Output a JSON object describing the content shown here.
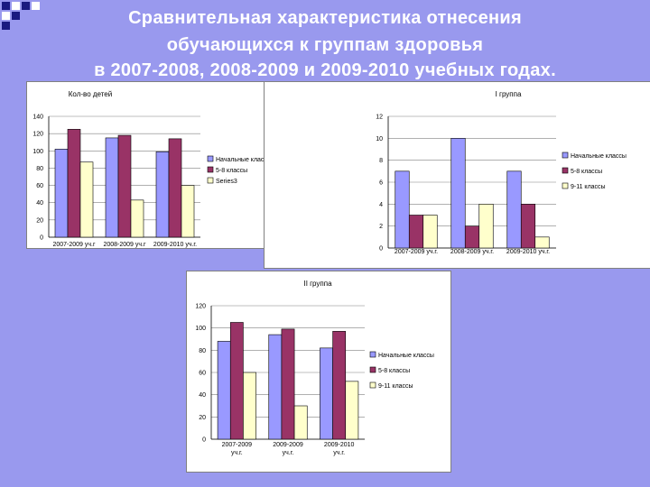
{
  "slide": {
    "title_lines": [
      "Сравнительная характеристика  отнесения",
      "обучающихся к группам здоровья",
      "в 2007-2008, 2008-2009 и 2009-2010 учебных годах."
    ]
  },
  "colors": {
    "background": "#9999ee",
    "s1": "#9999ff",
    "s2": "#993366",
    "s3": "#ffffcc"
  },
  "chart_data": [
    {
      "type": "bar",
      "title": "Кол-во детей",
      "categories": [
        "2007-2009 уч.г",
        "2008-2009 уч.г",
        "2009-2010 уч.г."
      ],
      "series": [
        {
          "name": "Начальные классы",
          "values": [
            102,
            115,
            99
          ]
        },
        {
          "name": "5-8 классы",
          "values": [
            125,
            118,
            114
          ]
        },
        {
          "name": "Series3",
          "values": [
            87,
            43,
            60
          ]
        }
      ],
      "ylim": [
        0,
        140
      ],
      "yticks": [
        0,
        20,
        40,
        60,
        80,
        100,
        120,
        140
      ],
      "ytick_labels": [
        "0",
        "20",
        "40",
        "60",
        "80",
        "100",
        "120",
        "140"
      ],
      "legend": "right"
    },
    {
      "type": "bar",
      "title": "I группа",
      "categories": [
        "2007-2009 уч.г.",
        "2008-2009 уч.г.",
        "2009-2010 уч.г."
      ],
      "series": [
        {
          "name": "Начальные классы",
          "values": [
            7,
            10,
            7
          ]
        },
        {
          "name": "5-8 классы",
          "values": [
            3,
            2,
            4
          ]
        },
        {
          "name": "9-11 классы",
          "values": [
            3,
            4,
            1
          ]
        }
      ],
      "ylim": [
        0,
        12
      ],
      "yticks": [
        0,
        2,
        4,
        6,
        8,
        10,
        12
      ],
      "ytick_labels": [
        "0",
        "2",
        "4",
        "6",
        "8",
        "10",
        "12"
      ],
      "legend": "right"
    },
    {
      "type": "bar",
      "title": "II группа",
      "categories": [
        "2007-2009 уч.г.",
        "2009-2009 уч.г.",
        "2009-2010 уч.г."
      ],
      "series": [
        {
          "name": "Начальные классы",
          "values": [
            88,
            94,
            82
          ]
        },
        {
          "name": "5-8 классы",
          "values": [
            105,
            99,
            97
          ]
        },
        {
          "name": "9-11 классы",
          "values": [
            60,
            30,
            52
          ]
        }
      ],
      "ylim": [
        0,
        120
      ],
      "yticks": [
        0,
        20,
        40,
        60,
        80,
        100,
        120
      ],
      "ytick_labels": [
        "0",
        "20",
        "40",
        "60",
        "80",
        "100",
        "120"
      ],
      "legend": "right"
    }
  ]
}
